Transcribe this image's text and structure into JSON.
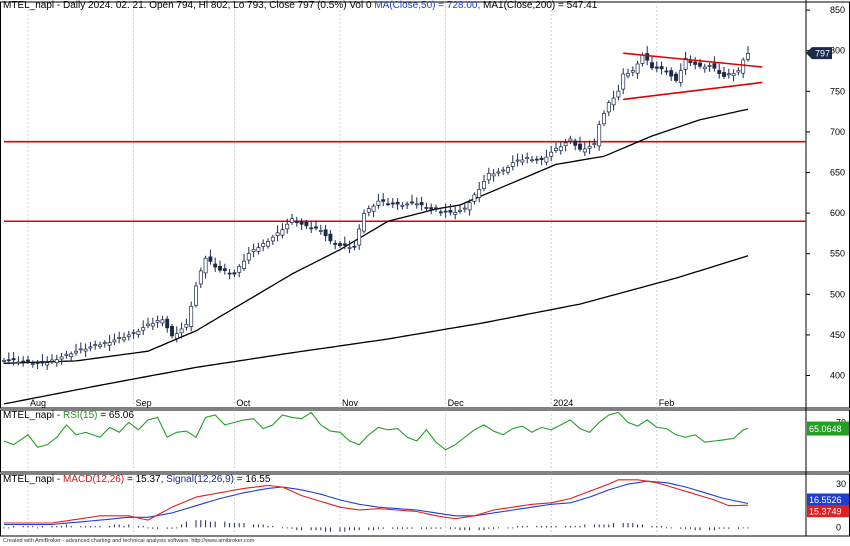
{
  "header": {
    "symbol": "MTEL_napi",
    "main_text": "MTEL_napi - Daily 2024. 02. 21. Open 794, Hi 802, Lo 793, Close 797 (0.5%) Vol 0",
    "ma50_text": "MA(Close,50) = 728.00,",
    "ma200_text": "MA1(Close,200) = 547.41",
    "rsi_label": "RSI(15)",
    "rsi_value": " = 65.06",
    "macd_label": "MACD(12,26)",
    "macd_value": " = 15.37,",
    "signal_label": "Signal(12,26,9)",
    "signal_value": " = 16.55"
  },
  "footer_text": "Created with AmiBroker - advanced charting and technical analysis software. http://www.amibroker.com",
  "colors": {
    "background": "#ffffff",
    "candle_up": "#ffffff",
    "candle_down": "#1b2a4a",
    "ma": "#000000",
    "hline": "#e00000",
    "rsi": "#22a022",
    "macd": "#e02020",
    "signal": "#1f3fd0",
    "histogram": "#1b2a4a",
    "price_badge": "#1b2a4a"
  },
  "chart_data": [
    {
      "type": "candlestick",
      "title": "MTEL_napi - Daily",
      "ylim": [
        360,
        860
      ],
      "y_ticks": [
        400,
        450,
        500,
        550,
        600,
        650,
        700,
        750,
        800,
        850
      ],
      "x_labels": [
        "Aug",
        "Sep",
        "Oct",
        "Nov",
        "Dec",
        "2024",
        "Feb"
      ],
      "x_label_index": [
        5,
        27,
        48,
        70,
        92,
        114,
        136
      ],
      "n_bars": 156,
      "last_price_label": "797",
      "price_path": [
        [
          0,
          420
        ],
        [
          8,
          414
        ],
        [
          15,
          430
        ],
        [
          21,
          440
        ],
        [
          27,
          452
        ],
        [
          30,
          462
        ],
        [
          33,
          470
        ],
        [
          35,
          448
        ],
        [
          38,
          462
        ],
        [
          40,
          510
        ],
        [
          42,
          545
        ],
        [
          45,
          530
        ],
        [
          48,
          525
        ],
        [
          51,
          550
        ],
        [
          54,
          562
        ],
        [
          57,
          575
        ],
        [
          60,
          592
        ],
        [
          63,
          583
        ],
        [
          66,
          580
        ],
        [
          68,
          565
        ],
        [
          70,
          560
        ],
        [
          73,
          558
        ],
        [
          75,
          600
        ],
        [
          78,
          615
        ],
        [
          82,
          610
        ],
        [
          86,
          612
        ],
        [
          89,
          605
        ],
        [
          93,
          600
        ],
        [
          96,
          605
        ],
        [
          98,
          622
        ],
        [
          101,
          648
        ],
        [
          104,
          652
        ],
        [
          106,
          662
        ],
        [
          109,
          668
        ],
        [
          112,
          665
        ],
        [
          114,
          675
        ],
        [
          118,
          690
        ],
        [
          120,
          678
        ],
        [
          123,
          685
        ],
        [
          124,
          710
        ],
        [
          126,
          735
        ],
        [
          128,
          750
        ],
        [
          129,
          770
        ],
        [
          131,
          775
        ],
        [
          133,
          795
        ],
        [
          135,
          780
        ],
        [
          138,
          775
        ],
        [
          140,
          762
        ],
        [
          142,
          790
        ],
        [
          145,
          780
        ],
        [
          147,
          782
        ],
        [
          150,
          768
        ],
        [
          153,
          775
        ],
        [
          154,
          790
        ],
        [
          155,
          797
        ]
      ],
      "ma50": [
        [
          0,
          415
        ],
        [
          15,
          418
        ],
        [
          30,
          430
        ],
        [
          40,
          455
        ],
        [
          50,
          490
        ],
        [
          60,
          525
        ],
        [
          70,
          555
        ],
        [
          80,
          590
        ],
        [
          90,
          605
        ],
        [
          95,
          610
        ],
        [
          105,
          635
        ],
        [
          115,
          660
        ],
        [
          125,
          670
        ],
        [
          135,
          695
        ],
        [
          145,
          715
        ],
        [
          155,
          728
        ]
      ],
      "ma200": [
        [
          0,
          365
        ],
        [
          20,
          388
        ],
        [
          40,
          410
        ],
        [
          60,
          428
        ],
        [
          80,
          445
        ],
        [
          100,
          465
        ],
        [
          120,
          488
        ],
        [
          140,
          520
        ],
        [
          155,
          547.41
        ]
      ],
      "hlines": [
        688,
        590
      ],
      "triangle": {
        "upper": [
          [
            129,
            797
          ],
          [
            158,
            780
          ]
        ],
        "lower": [
          [
            129,
            740
          ],
          [
            158,
            761
          ]
        ]
      }
    },
    {
      "type": "line",
      "title": "RSI(15)",
      "ylim": [
        30,
        80
      ],
      "y_ticks": [
        70
      ],
      "last_value_label": "65.0648",
      "series": [
        {
          "name": "RSI(15)",
          "values": [
            [
              0,
              55
            ],
            [
              2,
              52
            ],
            [
              5,
              60
            ],
            [
              7,
              50
            ],
            [
              9,
              52
            ],
            [
              11,
              58
            ],
            [
              13,
              68
            ],
            [
              15,
              60
            ],
            [
              17,
              62
            ],
            [
              20,
              58
            ],
            [
              22,
              66
            ],
            [
              24,
              62
            ],
            [
              26,
              70
            ],
            [
              28,
              64
            ],
            [
              30,
              72
            ],
            [
              32,
              74
            ],
            [
              34,
              58
            ],
            [
              36,
              62
            ],
            [
              38,
              63
            ],
            [
              40,
              58
            ],
            [
              42,
              74
            ],
            [
              44,
              76
            ],
            [
              46,
              68
            ],
            [
              48,
              70
            ],
            [
              50,
              72
            ],
            [
              52,
              73
            ],
            [
              54,
              65
            ],
            [
              56,
              68
            ],
            [
              58,
              76
            ],
            [
              60,
              74
            ],
            [
              62,
              73
            ],
            [
              64,
              78
            ],
            [
              66,
              68
            ],
            [
              68,
              63
            ],
            [
              70,
              62
            ],
            [
              72,
              55
            ],
            [
              74,
              52
            ],
            [
              76,
              60
            ],
            [
              78,
              66
            ],
            [
              80,
              64
            ],
            [
              82,
              65
            ],
            [
              84,
              58
            ],
            [
              86,
              55
            ],
            [
              88,
              64
            ],
            [
              90,
              54
            ],
            [
              92,
              48
            ],
            [
              94,
              52
            ],
            [
              96,
              58
            ],
            [
              98,
              64
            ],
            [
              100,
              68
            ],
            [
              102,
              63
            ],
            [
              104,
              60
            ],
            [
              106,
              65
            ],
            [
              108,
              67
            ],
            [
              110,
              62
            ],
            [
              112,
              66
            ],
            [
              114,
              64
            ],
            [
              116,
              68
            ],
            [
              118,
              72
            ],
            [
              120,
              65
            ],
            [
              122,
              62
            ],
            [
              124,
              70
            ],
            [
              126,
              76
            ],
            [
              128,
              78
            ],
            [
              130,
              70
            ],
            [
              132,
              67
            ],
            [
              134,
              72
            ],
            [
              136,
              66
            ],
            [
              138,
              65
            ],
            [
              140,
              60
            ],
            [
              142,
              58
            ],
            [
              144,
              60
            ],
            [
              146,
              54
            ],
            [
              148,
              55
            ],
            [
              150,
              56
            ],
            [
              152,
              57
            ],
            [
              154,
              64
            ],
            [
              155,
              65.06
            ]
          ]
        }
      ]
    },
    {
      "type": "line",
      "title": "MACD",
      "ylim": [
        -6,
        37
      ],
      "y_ticks": [
        0,
        10,
        20,
        30
      ],
      "last_value_labels": [
        "16.5526",
        "15.3749"
      ],
      "series": [
        {
          "name": "MACD(12,26)",
          "values": [
            [
              0,
              3
            ],
            [
              10,
              3
            ],
            [
              20,
              8
            ],
            [
              26,
              8
            ],
            [
              30,
              5
            ],
            [
              35,
              14
            ],
            [
              40,
              21
            ],
            [
              45,
              24
            ],
            [
              50,
              27
            ],
            [
              55,
              29
            ],
            [
              58,
              28
            ],
            [
              62,
              22
            ],
            [
              66,
              18
            ],
            [
              70,
              14
            ],
            [
              74,
              12
            ],
            [
              78,
              13
            ],
            [
              82,
              12
            ],
            [
              86,
              11
            ],
            [
              90,
              8
            ],
            [
              94,
              6
            ],
            [
              98,
              8
            ],
            [
              102,
              12
            ],
            [
              106,
              14
            ],
            [
              110,
              16
            ],
            [
              114,
              17
            ],
            [
              118,
              20
            ],
            [
              122,
              25
            ],
            [
              126,
              30
            ],
            [
              128,
              33
            ],
            [
              132,
              33
            ],
            [
              136,
              31
            ],
            [
              140,
              27
            ],
            [
              144,
              23
            ],
            [
              148,
              19
            ],
            [
              151,
              15
            ],
            [
              155,
              15.37
            ]
          ]
        },
        {
          "name": "Signal(12,26,9)",
          "values": [
            [
              0,
              2
            ],
            [
              10,
              2
            ],
            [
              20,
              5
            ],
            [
              26,
              7
            ],
            [
              30,
              7
            ],
            [
              35,
              10
            ],
            [
              40,
              15
            ],
            [
              45,
              20
            ],
            [
              50,
              24
            ],
            [
              55,
              27
            ],
            [
              58,
              28
            ],
            [
              62,
              26
            ],
            [
              66,
              23
            ],
            [
              70,
              19
            ],
            [
              74,
              16
            ],
            [
              78,
              14
            ],
            [
              82,
              13
            ],
            [
              86,
              12
            ],
            [
              90,
              10
            ],
            [
              94,
              8
            ],
            [
              98,
              8
            ],
            [
              102,
              10
            ],
            [
              106,
              12
            ],
            [
              110,
              14
            ],
            [
              114,
              16
            ],
            [
              118,
              17
            ],
            [
              122,
              21
            ],
            [
              126,
              26
            ],
            [
              130,
              30
            ],
            [
              134,
              32
            ],
            [
              138,
              31
            ],
            [
              142,
              28
            ],
            [
              146,
              24
            ],
            [
              150,
              20
            ],
            [
              155,
              16.55
            ]
          ]
        }
      ],
      "histogram": [
        0,
        0,
        1,
        1,
        1,
        1,
        0,
        1,
        1,
        1,
        1,
        2,
        1,
        1,
        1,
        1,
        1,
        1,
        1,
        2,
        2,
        1,
        2,
        1,
        1,
        0,
        -1,
        -1,
        -1,
        -1,
        0,
        2,
        4,
        5,
        5,
        5,
        4,
        4,
        4,
        3,
        3,
        3,
        3,
        2,
        2,
        2,
        1,
        1,
        0,
        0,
        -1,
        -2,
        -2,
        -2,
        -2,
        -2,
        -3,
        -3,
        -3,
        -3,
        -2,
        -2,
        -2,
        -2,
        -2,
        -1,
        -1,
        -1,
        -1,
        -1,
        -1,
        -1,
        -1,
        -1,
        -1,
        -1,
        -1,
        -1,
        -1,
        -2,
        -2,
        -2,
        -2,
        -2,
        -1,
        -1,
        0,
        0,
        0,
        1,
        1,
        1,
        1,
        1,
        1,
        1,
        1,
        1,
        1,
        1,
        1,
        2,
        2,
        2,
        2,
        2,
        3,
        3,
        3,
        3,
        2,
        2,
        1,
        1,
        1,
        0,
        0,
        -1,
        -1,
        -1,
        -2,
        -2,
        -2,
        -2,
        -1,
        -1,
        -1,
        -1,
        0,
        0
      ]
    }
  ]
}
